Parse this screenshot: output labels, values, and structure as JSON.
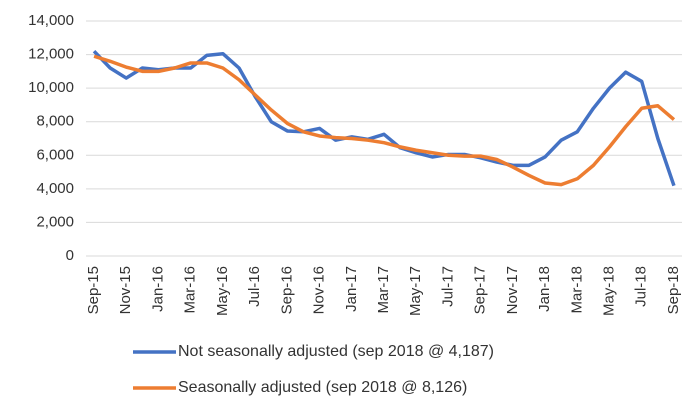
{
  "chart_data": {
    "type": "line",
    "categories": [
      "Sep-15",
      null,
      "Nov-15",
      null,
      "Jan-16",
      null,
      "Mar-16",
      null,
      "May-16",
      null,
      "Jul-16",
      null,
      "Sep-16",
      null,
      "Nov-16",
      null,
      "Jan-17",
      null,
      "Mar-17",
      null,
      "May-17",
      null,
      "Jul-17",
      null,
      "Sep-17",
      null,
      "Nov-17",
      null,
      "Jan-18",
      null,
      "Mar-18",
      null,
      "May-18",
      null,
      "Jul-18",
      null,
      "Sep-18"
    ],
    "series": [
      {
        "name": "Not seasonally adjusted (sep 2018 @ 4,187)",
        "color": "#4472c4",
        "values": [
          12200,
          11200,
          10600,
          11200,
          11100,
          11200,
          11200,
          11950,
          12050,
          11200,
          9500,
          8000,
          7450,
          7400,
          7600,
          6900,
          7100,
          6950,
          7250,
          6450,
          6150,
          5900,
          6050,
          6050,
          5850,
          5600,
          5400,
          5400,
          5900,
          6900,
          7400,
          8800,
          10000,
          10950,
          10400,
          7000,
          4187
        ]
      },
      {
        "name": "Seasonally adjusted (sep 2018 @ 8,126)",
        "color": "#ed7d31",
        "values": [
          11900,
          11600,
          11250,
          11000,
          11000,
          11200,
          11500,
          11500,
          11200,
          10500,
          9600,
          8700,
          7900,
          7400,
          7150,
          7050,
          7000,
          6900,
          6750,
          6500,
          6300,
          6150,
          6000,
          5950,
          5950,
          5750,
          5300,
          4800,
          4350,
          4250,
          4600,
          5400,
          6500,
          7700,
          8800,
          8950,
          8126
        ]
      }
    ],
    "ylim": [
      0,
      14000
    ],
    "yticks": [
      0,
      {
        "value": 2000,
        "label": "2,000"
      },
      {
        "value": 4000,
        "label": "4,000"
      },
      {
        "value": 6000,
        "label": "6,000"
      },
      {
        "value": 8000,
        "label": "8,000"
      },
      {
        "value": 10000,
        "label": "10,000"
      },
      {
        "value": 12000,
        "label": "12,000"
      },
      {
        "value": 14000,
        "label": "14,000"
      }
    ],
    "grid": true
  }
}
